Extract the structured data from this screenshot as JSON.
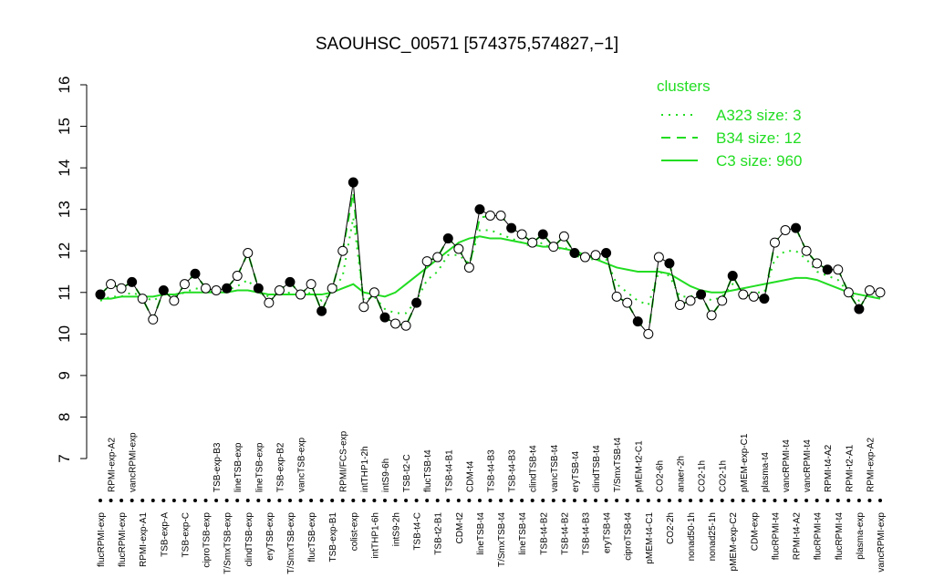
{
  "chart_data": {
    "type": "line",
    "title": "SAOUHSC_00571 [574375,574827,−1]",
    "categories": [
      "flucRPMI-exp",
      "RPMI-exp-A2",
      "flucRPMI-exp",
      "vancRPMI-exp",
      "RPMI-exp-A1",
      null,
      "TSB-exp-A",
      null,
      "TSB-exp-C",
      null,
      "ciproTSB-exp",
      "TSB-exp-B3",
      "T/SmxTSB-exp",
      "lineTSB-exp",
      "clindTSB-exp",
      "lineTSB-exp",
      "eryTSB-exp",
      "TSB-exp-B2",
      "T/SmxTSB-exp",
      "vancTSB-exp",
      "flucTSB-exp",
      null,
      "TSB-exp-B1",
      "RPMI/FCS-exp",
      "colist-exp",
      "intTHP1-2h",
      "intTHP1-6h",
      "intS9-6h",
      "intS9-2h",
      "TSB-t2-C",
      "TSB-t4-C",
      "flucTSB-t4",
      "TSB-t2-B1",
      "TSB-t4-B1",
      "CDM-t2",
      "CDM-t4",
      "lineTSB-t4",
      "TSB-t4-B3",
      "T/SmxTSB-t4",
      "TSB-t4-B3",
      "lineTSB-t4",
      "clindTSB-t4",
      "TSB-t4-B2",
      "vancTSB-t4",
      "TSB-t4-B2",
      "eryTSB-t4",
      "TSB-t4-B3",
      "clindTSB-t4",
      "eryTSB-t4",
      "T/SmxTSB-t4",
      "ciproTSB-t4",
      "pMEM-t2-C1",
      "pMEM-t4-C1",
      "CO2-6h",
      "CO2-2h",
      "anaer-2h",
      "nonad50-1h",
      "CO2-1h",
      "nonad25-1h",
      "CO2-1h",
      "pMEM-exp-C2",
      "pMEM-exp-C1",
      "CDM-exp",
      "plasma-t4",
      "flucRPMI-t4",
      "vancRPMI-t4",
      "RPMI-t4-A2",
      "vancRPMI-t4",
      "flucRPMI-t4",
      "RPMI-t4-A2",
      "flucRPMI-t4",
      "RPMI-t2-A1",
      "plasma-exp",
      "RPMI-exp-A2",
      "vancRPMI-exp"
    ],
    "values": [
      10.95,
      11.2,
      11.1,
      11.25,
      10.85,
      10.35,
      11.05,
      10.8,
      11.2,
      11.45,
      11.1,
      11.05,
      11.1,
      11.4,
      11.95,
      11.1,
      10.75,
      11.05,
      11.25,
      10.95,
      11.2,
      10.55,
      11.1,
      12.0,
      13.65,
      10.65,
      11.0,
      10.4,
      10.25,
      10.2,
      10.75,
      11.75,
      11.85,
      12.3,
      12.05,
      11.6,
      13.0,
      12.85,
      12.85,
      12.55,
      12.4,
      12.2,
      12.4,
      12.1,
      12.35,
      11.95,
      11.85,
      11.9,
      11.95,
      10.9,
      10.75,
      10.3,
      10.0,
      11.85,
      11.7,
      10.7,
      10.8,
      10.95,
      10.45,
      10.8,
      11.4,
      10.95,
      10.9,
      10.85,
      12.2,
      12.5,
      12.55,
      12.0,
      11.7,
      11.55,
      11.55,
      11.0,
      10.6,
      11.05,
      11.0
    ],
    "color": "#000000",
    "legend_title": "clusters",
    "series": [
      {
        "name": "A323 size: 3",
        "color": "#22dd22",
        "linestyle": "dotted",
        "values": [
          10.8,
          10.9,
          10.9,
          11.0,
          10.9,
          10.8,
          10.95,
          10.9,
          11.0,
          11.1,
          11.05,
          11.0,
          11.05,
          11.15,
          11.3,
          11.0,
          10.9,
          10.95,
          11.0,
          10.9,
          11.0,
          10.8,
          11.0,
          11.4,
          12.8,
          10.8,
          10.9,
          10.6,
          10.5,
          10.5,
          10.8,
          11.3,
          11.5,
          11.9,
          11.9,
          11.7,
          12.5,
          12.5,
          12.4,
          12.3,
          12.2,
          12.1,
          12.2,
          12.0,
          12.1,
          11.9,
          11.8,
          11.8,
          11.8,
          11.2,
          11.0,
          10.8,
          10.7,
          11.5,
          11.4,
          10.9,
          10.9,
          11.0,
          10.8,
          10.9,
          11.2,
          11.0,
          11.0,
          11.0,
          11.8,
          12.0,
          12.0,
          11.8,
          11.5,
          11.4,
          11.3,
          11.0,
          10.8,
          10.9,
          10.9
        ]
      },
      {
        "name": "B34 size: 12",
        "color": "#22dd22",
        "linestyle": "dashed",
        "values": [
          10.95,
          11.2,
          11.1,
          11.25,
          10.85,
          10.35,
          11.05,
          10.8,
          11.2,
          11.45,
          11.1,
          11.05,
          11.1,
          11.4,
          11.95,
          11.1,
          10.75,
          11.05,
          11.25,
          10.95,
          11.2,
          10.55,
          11.1,
          12.0,
          13.4,
          10.65,
          11.0,
          10.4,
          10.25,
          10.2,
          10.75,
          11.75,
          11.85,
          12.3,
          12.05,
          11.6,
          12.8,
          12.85,
          12.85,
          12.55,
          12.4,
          12.2,
          12.4,
          12.1,
          12.35,
          11.95,
          11.85,
          11.9,
          11.95,
          10.9,
          10.75,
          10.3,
          10.0,
          11.85,
          11.7,
          10.7,
          10.8,
          10.95,
          10.45,
          10.8,
          11.4,
          10.95,
          10.9,
          10.85,
          12.2,
          12.5,
          12.55,
          12.0,
          11.7,
          11.55,
          11.55,
          11.0,
          10.6,
          11.05,
          11.0
        ]
      },
      {
        "name": "C3 size: 960",
        "color": "#22dd22",
        "linestyle": "solid",
        "values": [
          10.85,
          10.85,
          10.9,
          10.9,
          10.9,
          10.9,
          10.95,
          10.95,
          11.0,
          11.0,
          11.0,
          11.0,
          11.0,
          11.05,
          11.05,
          11.0,
          10.95,
          10.95,
          10.95,
          10.95,
          10.95,
          10.95,
          11.0,
          11.1,
          11.2,
          11.0,
          10.95,
          10.9,
          11.0,
          11.2,
          11.4,
          11.6,
          11.8,
          12.0,
          12.2,
          12.3,
          12.35,
          12.3,
          12.3,
          12.25,
          12.2,
          12.15,
          12.1,
          12.1,
          12.05,
          12.0,
          11.9,
          11.8,
          11.7,
          11.6,
          11.55,
          11.5,
          11.5,
          11.5,
          11.45,
          11.3,
          11.15,
          11.05,
          11.0,
          11.0,
          11.05,
          11.1,
          11.15,
          11.2,
          11.25,
          11.3,
          11.35,
          11.35,
          11.3,
          11.2,
          11.1,
          11.0,
          10.95,
          10.9,
          10.85
        ]
      }
    ],
    "ylim": [
      7,
      16
    ],
    "yticks": [
      7,
      8,
      9,
      10,
      11,
      12,
      13,
      14,
      15,
      16
    ]
  }
}
